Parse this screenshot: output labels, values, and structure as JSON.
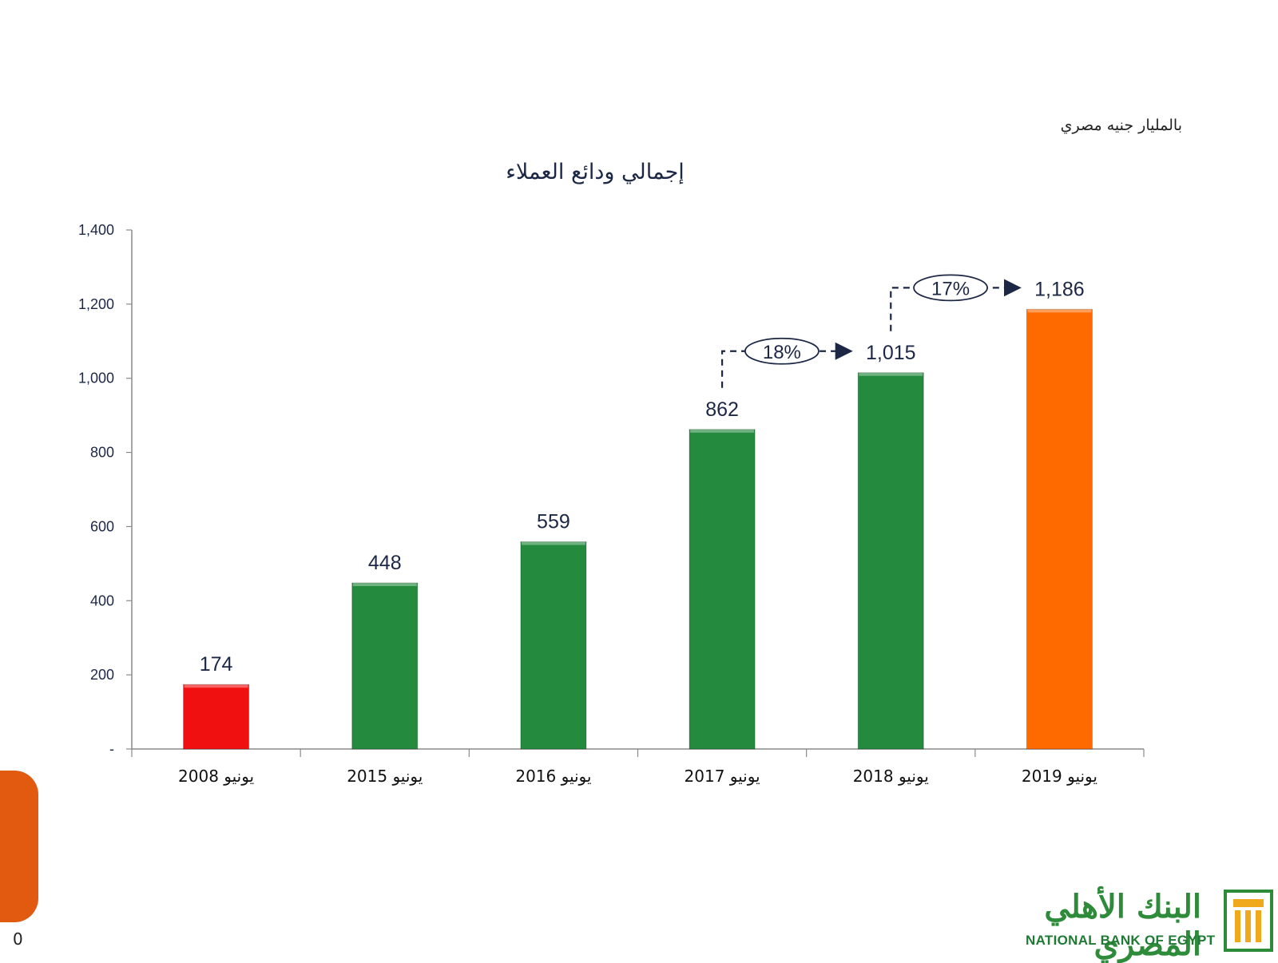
{
  "header": {
    "unit_label": "بالمليار جنيه مصري",
    "title": "إجمالي ودائع العملاء"
  },
  "chart_data": {
    "type": "bar",
    "title": "إجمالي ودائع العملاء",
    "unit": "بالمليار جنيه مصري",
    "categories": [
      "يونيو 2008",
      "يونيو 2015",
      "يونيو 2016",
      "يونيو 2017",
      "يونيو 2018",
      "يونيو 2019"
    ],
    "values": [
      174,
      448,
      559,
      862,
      1015,
      1186
    ],
    "value_labels": [
      "174",
      "448",
      "559",
      "862",
      "1,015",
      "1,186"
    ],
    "bar_colors": [
      "#f01010",
      "#238a3e",
      "#238a3e",
      "#238a3e",
      "#238a3e",
      "#ff6a00"
    ],
    "ylim": [
      0,
      1400
    ],
    "yticks": [
      {
        "value": 0,
        "label": "-"
      },
      {
        "value": 200,
        "label": "200"
      },
      {
        "value": 400,
        "label": "400"
      },
      {
        "value": 600,
        "label": "600"
      },
      {
        "value": 800,
        "label": "800"
      },
      {
        "value": 1000,
        "label": "1,000"
      },
      {
        "value": 1200,
        "label": "1,200"
      },
      {
        "value": 1400,
        "label": "1,400"
      }
    ],
    "grid": false,
    "annotations": [
      {
        "from_index": 3,
        "to_index": 4,
        "text": "18%"
      },
      {
        "from_index": 4,
        "to_index": 5,
        "text": "17%"
      }
    ]
  },
  "footer": {
    "page_number": "0",
    "logo_arabic": "البنك الأهلي المصري",
    "logo_english": "NATIONAL BANK OF EGYPT"
  },
  "colors": {
    "axis": "#8a8a8a",
    "text": "#1c2745",
    "accent_tab": "#e25a10",
    "brand_green": "#2e8b3a",
    "brand_gold": "#f0a81c"
  }
}
